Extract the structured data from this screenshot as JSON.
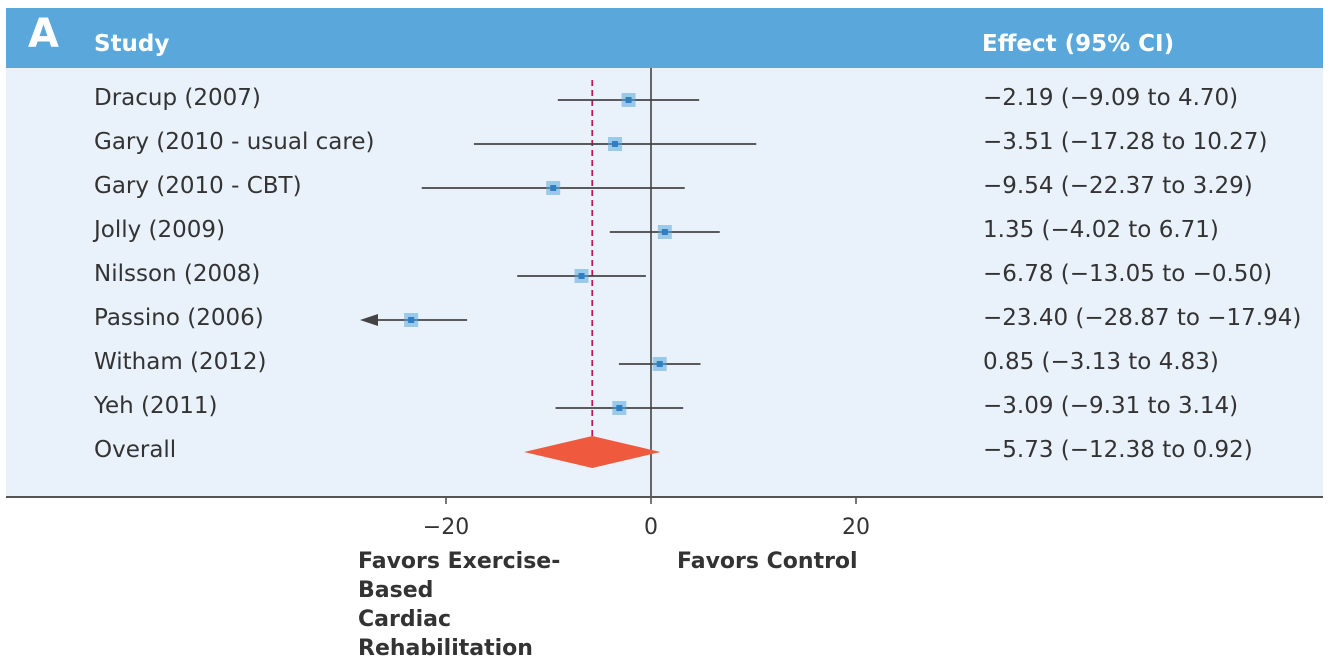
{
  "panel_label": "A",
  "header": {
    "study": "Study",
    "effect": "Effect (95% CI)"
  },
  "colors": {
    "header_bg": "#5aa7dc",
    "panel_bg": "#e9f1fb",
    "marker": "#5aa7dc",
    "overall_diamond": "#ef5a3f",
    "reference_line": "#c2185b",
    "ci_line": "#444444"
  },
  "chart_data": {
    "type": "forest",
    "x_axis": {
      "ticks": [
        -20,
        0,
        20
      ],
      "range": [
        -28,
        28
      ]
    },
    "reference_line": -5.73,
    "studies": [
      {
        "name": "Dracup (2007)",
        "effect": -2.19,
        "lower": -9.09,
        "upper": 4.7,
        "label": "−2.19 (−9.09 to 4.70)"
      },
      {
        "name": "Gary (2010 - usual care)",
        "effect": -3.51,
        "lower": -17.28,
        "upper": 10.27,
        "label": "−3.51 (−17.28 to 10.27)"
      },
      {
        "name": "Gary (2010 - CBT)",
        "effect": -9.54,
        "lower": -22.37,
        "upper": 3.29,
        "label": "−9.54 (−22.37 to 3.29)"
      },
      {
        "name": "Jolly (2009)",
        "effect": 1.35,
        "lower": -4.02,
        "upper": 6.71,
        "label": "1.35 (−4.02 to 6.71)"
      },
      {
        "name": "Nilsson (2008)",
        "effect": -6.78,
        "lower": -13.05,
        "upper": -0.5,
        "label": "−6.78 (−13.05 to −0.50)"
      },
      {
        "name": "Passino (2006)",
        "effect": -23.4,
        "lower": -28.87,
        "upper": -17.94,
        "label": "−23.40 (−28.87 to −17.94)",
        "lower_truncated": true
      },
      {
        "name": "Witham (2012)",
        "effect": 0.85,
        "lower": -3.13,
        "upper": 4.83,
        "label": "0.85 (−3.13 to 4.83)"
      },
      {
        "name": "Yeh (2011)",
        "effect": -3.09,
        "lower": -9.31,
        "upper": 3.14,
        "label": "−3.09 (−9.31 to 3.14)"
      }
    ],
    "overall": {
      "name": "Overall",
      "effect": -5.73,
      "lower": -12.38,
      "upper": 0.92,
      "label": "−5.73 (−12.38 to 0.92)"
    },
    "favors_left": [
      "Favors Exercise-Based",
      "Cardiac Rehabilitation"
    ],
    "favors_right": "Favors Control"
  }
}
